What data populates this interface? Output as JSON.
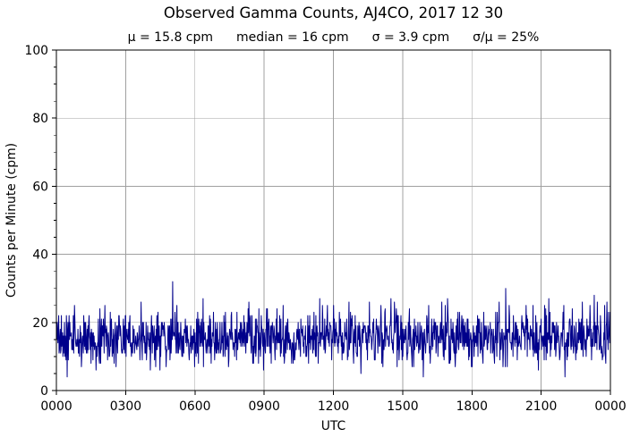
{
  "chart_data": {
    "type": "line",
    "title": "Observed Gamma Counts, AJ4CO, 2017 12 30",
    "stats_line": {
      "mu": "μ = 15.8 cpm",
      "median": "median = 16 cpm",
      "sigma": "σ = 3.9 cpm",
      "sigma_over_mu": "σ/μ = 25%"
    },
    "xlabel": "UTC",
    "ylabel": "Counts per Minute (cpm)",
    "xlim_minutes": [
      0,
      1440
    ],
    "ylim": [
      0,
      100
    ],
    "yticks": [
      0,
      20,
      40,
      60,
      80,
      100
    ],
    "y_minor_tick_step": 5,
    "xtick_labels": [
      "0000",
      "0300",
      "0600",
      "0900",
      "1200",
      "1500",
      "1800",
      "2100",
      "0000"
    ],
    "xtick_interval_hours": 3,
    "grid": true,
    "legend": null,
    "colors": {
      "line": "#00008B",
      "grid": "#a0a0a0",
      "axes": "#000000",
      "background": "#ffffff"
    },
    "series": [
      {
        "name": "observed gamma counts",
        "points_per_day": 1440,
        "distribution": "poisson",
        "mean_cpm": 15.8,
        "median_cpm": 16,
        "sigma_cpm": 3.9,
        "sigma_over_mu_percent": 25,
        "observed_min_cpm": 4,
        "observed_max_cpm": 32,
        "max_spike_minute": 302,
        "early_dip_minute": 28,
        "seed": 2017
      }
    ]
  }
}
